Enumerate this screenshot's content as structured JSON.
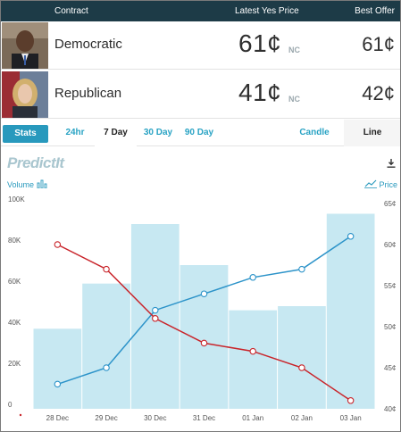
{
  "header": {
    "contract_label": "Contract",
    "latest_price_label": "Latest Yes Price",
    "best_offer_label": "Best Offer"
  },
  "contracts": [
    {
      "name": "Democratic",
      "latest_yes_price": "61¢",
      "change": "NC",
      "best_offer": "61¢"
    },
    {
      "name": "Republican",
      "latest_yes_price": "41¢",
      "change": "NC",
      "best_offer": "42¢"
    }
  ],
  "tabs": {
    "stats": "Stats",
    "h24": "24hr",
    "d7": "7 Day",
    "d30": "30 Day",
    "d90": "90 Day",
    "candle": "Candle",
    "line": "Line",
    "selected_range": "7 Day",
    "selected_type": "Line"
  },
  "logo_text": "PredictIt",
  "icons": {
    "download": "download-icon",
    "volume": "bar-chart-icon",
    "price": "line-chart-icon"
  },
  "legend": {
    "volume": "Volume",
    "price": "Price"
  },
  "colors": {
    "header_bg": "#1d3b47",
    "accent": "#2899bd",
    "democratic_line": "#2c93c9",
    "republican_line": "#c9242a",
    "volume_bar": "#c7e8f2"
  },
  "chart_data": {
    "type": "bar+line",
    "categories": [
      "28 Dec",
      "29 Dec",
      "30 Dec",
      "31 Dec",
      "01 Jan",
      "02 Jan",
      "03 Jan"
    ],
    "volume": [
      39000,
      61000,
      90000,
      70000,
      48000,
      50000,
      95000
    ],
    "series": [
      {
        "values": [
          43,
          45,
          52,
          54,
          56,
          57,
          61
        ],
        "color": "#2c93c9"
      },
      {
        "values": [
          60,
          57,
          51,
          48,
          47,
          45,
          41
        ],
        "color": "#c9242a"
      }
    ],
    "left_axis": {
      "ticks": [
        "0",
        "20K",
        "40K",
        "60K",
        "80K",
        "100K"
      ],
      "range": [
        0,
        100000
      ]
    },
    "right_axis": {
      "ticks": [
        "40¢",
        "45¢",
        "50¢",
        "55¢",
        "60¢",
        "65¢"
      ],
      "range": [
        40,
        65
      ]
    },
    "grid": false
  }
}
